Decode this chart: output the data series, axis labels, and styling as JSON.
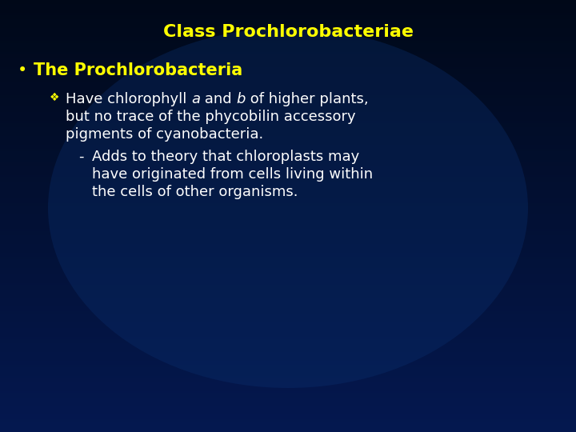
{
  "title": "Class Prochlorobacteriae",
  "title_color": "#ffff00",
  "title_fontsize": 16,
  "bullet1_text": "The Prochlorobacteria",
  "bullet1_color": "#ffff00",
  "bullet1_fontsize": 15,
  "bullet2_line1_pre": "Have chlorophyll ",
  "bullet2_a": "a",
  "bullet2_and": " and ",
  "bullet2_b": "b",
  "bullet2_rest": " of higher plants,",
  "bullet2_line2": "but no trace of the phycobilin accessory",
  "bullet2_line3": "pigments of cyanobacteria.",
  "bullet2_color": "#ffffff",
  "bullet2_fontsize": 13,
  "bullet3_line1": "Adds to theory that chloroplasts may",
  "bullet3_line2": "have originated from cells living within",
  "bullet3_line3": "the cells of other organisms.",
  "bullet3_color": "#ffffff",
  "bullet3_fontsize": 13,
  "bullet_dot_color": "#ffff00",
  "diamond_color": "#ffff00",
  "dash_color": "#ffffff",
  "bg_top_color": "#000818",
  "bg_bottom_color": "#0a2060"
}
